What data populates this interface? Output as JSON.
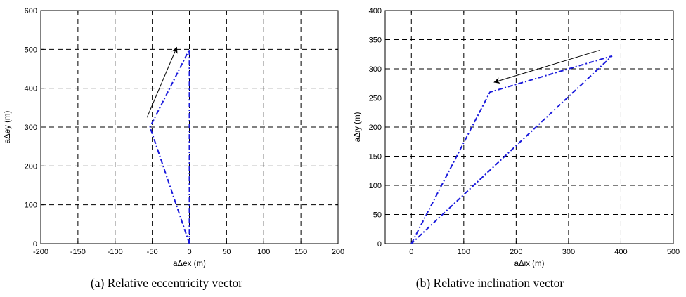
{
  "chart_data": [
    {
      "type": "line",
      "xlabel": "aΔex (m)",
      "ylabel": "aΔey (m)",
      "caption": "(a) Relative eccentricity vector",
      "xlim": [
        -200,
        200
      ],
      "ylim": [
        0,
        600
      ],
      "xticks": [
        -200,
        -150,
        -100,
        -50,
        0,
        50,
        100,
        150,
        200
      ],
      "yticks": [
        0,
        100,
        200,
        300,
        400,
        500,
        600
      ],
      "grid": true,
      "series": [
        {
          "x": [
            0,
            -53,
            0,
            0
          ],
          "y": [
            0,
            300,
            500,
            0
          ],
          "color": "#1a1adc",
          "style": "dash-dot"
        }
      ],
      "annotations": [
        {
          "type": "arrow",
          "from": [
            -57,
            325
          ],
          "to": [
            -17,
            505
          ]
        }
      ]
    },
    {
      "type": "line",
      "xlabel": "aΔix (m)",
      "ylabel": "aΔiy (m)",
      "caption": "(b) Relative inclination vector",
      "xlim": [
        -50,
        500
      ],
      "ylim": [
        0,
        400
      ],
      "xticks": [
        0,
        100,
        200,
        300,
        400,
        500
      ],
      "yticks": [
        0,
        50,
        100,
        150,
        200,
        250,
        300,
        350,
        400
      ],
      "grid": true,
      "series": [
        {
          "x": [
            0,
            150,
            383,
            0
          ],
          "y": [
            0,
            260,
            322,
            0
          ],
          "color": "#1a1adc",
          "style": "dash-dot"
        }
      ],
      "annotations": [
        {
          "type": "arrow",
          "from": [
            360,
            332
          ],
          "to": [
            158,
            277
          ]
        }
      ]
    }
  ]
}
